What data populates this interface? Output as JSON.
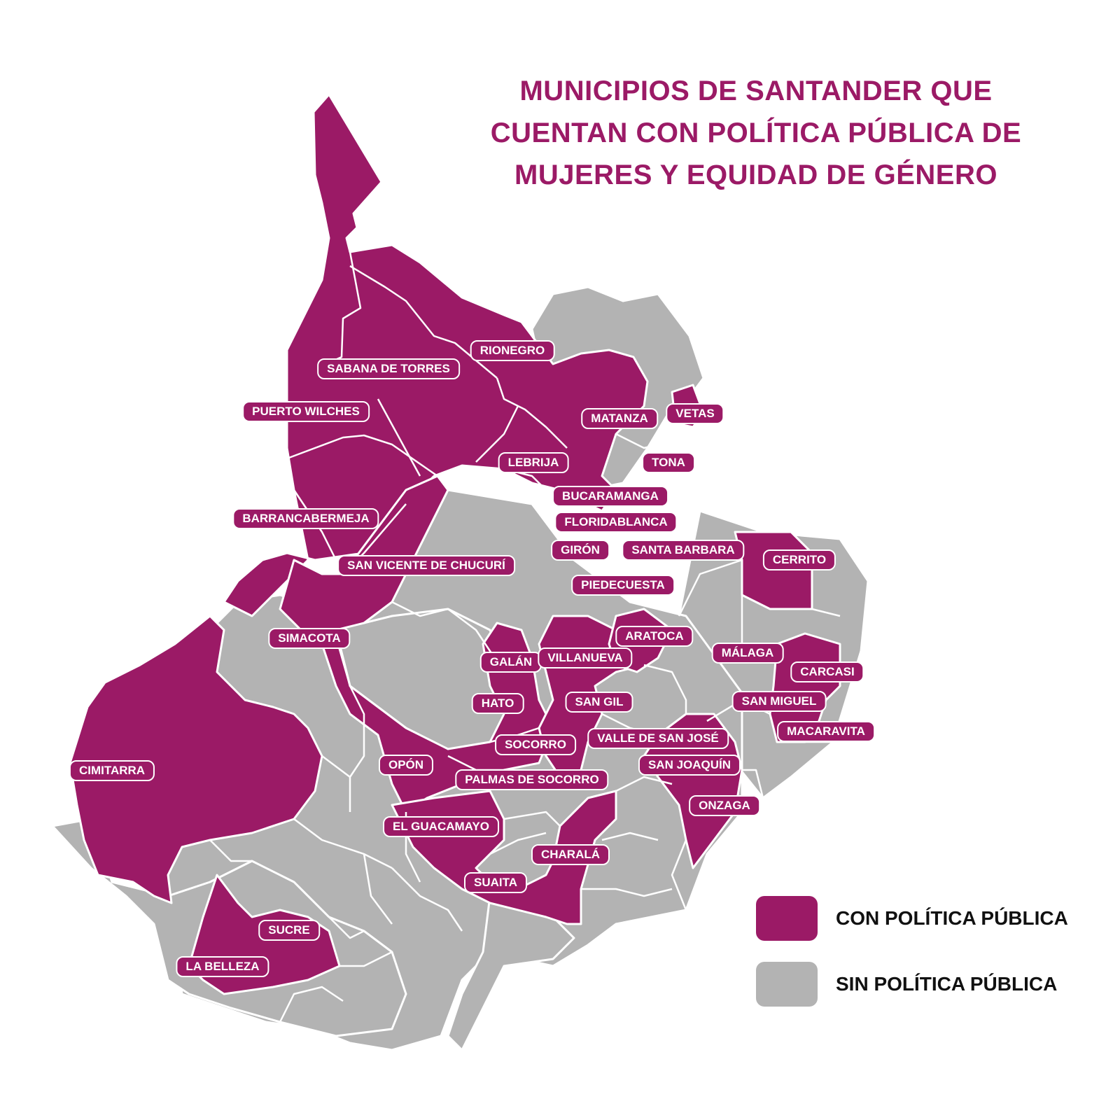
{
  "title_lines": [
    "MUNICIPIOS DE SANTANDER QUE",
    "CUENTAN CON POLÍTICA PÚBLICA DE",
    "MUJERES Y EQUIDAD DE GÉNERO"
  ],
  "colors": {
    "with_policy": "#9b1a66",
    "without_policy": "#b3b3b3"
  },
  "legend": {
    "with_policy": "CON POLÍTICA PÚBLICA",
    "without_policy": "SIN POLÍTICA PÚBLICA"
  },
  "municipalities_with_policy": [
    "RIONEGRO",
    "SABANA DE TORRES",
    "PUERTO WILCHES",
    "VETAS",
    "MATANZA",
    "TONA",
    "LEBRIJA",
    "BUCARAMANGA",
    "FLORIDABLANCA",
    "BARRANCABERMEJA",
    "GIRÓN",
    "SANTA BARBARA",
    "CERRITO",
    "SAN VICENTE DE CHUCURÍ",
    "PIEDECUESTA",
    "SIMACOTA",
    "ARATOCA",
    "MÁLAGA",
    "GALÁN",
    "VILLANUEVA",
    "CARCASI",
    "HATO",
    "SAN GIL",
    "SAN MIGUEL",
    "MACARAVITA",
    "VALLE DE SAN JOSÉ",
    "SOCORRO",
    "CIMITARRA",
    "OPÓN",
    "SAN JOAQUÍN",
    "PALMAS DE SOCORRO",
    "ONZAGA",
    "EL GUACAMAYO",
    "CHARALÁ",
    "SUAITA",
    "SUCRE",
    "LA BELLEZA"
  ]
}
